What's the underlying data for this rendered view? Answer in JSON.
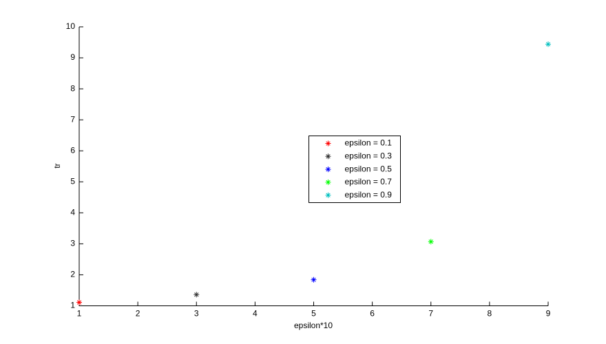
{
  "chart_data": {
    "type": "scatter",
    "x_label": "epsilon*10",
    "y_label": "tr",
    "xlim": [
      1,
      9
    ],
    "ylim": [
      1,
      10
    ],
    "xticks": [
      1,
      2,
      3,
      4,
      5,
      6,
      7,
      8,
      9
    ],
    "yticks": [
      1,
      2,
      3,
      4,
      5,
      6,
      7,
      8,
      9,
      10
    ],
    "series": [
      {
        "name": "epsilon = 0.1",
        "color": "#ff0000",
        "x": [
          1
        ],
        "values": [
          1.11
        ]
      },
      {
        "name": "epsilon = 0.3",
        "color": "#333333",
        "x": [
          3
        ],
        "values": [
          1.36
        ]
      },
      {
        "name": "epsilon = 0.5",
        "color": "#0000ff",
        "x": [
          5
        ],
        "values": [
          1.84
        ]
      },
      {
        "name": "epsilon = 0.7",
        "color": "#00ff00",
        "x": [
          7
        ],
        "values": [
          3.07
        ]
      },
      {
        "name": "epsilon = 0.9",
        "color": "#00bfbf",
        "x": [
          9
        ],
        "values": [
          9.44
        ]
      }
    ]
  }
}
